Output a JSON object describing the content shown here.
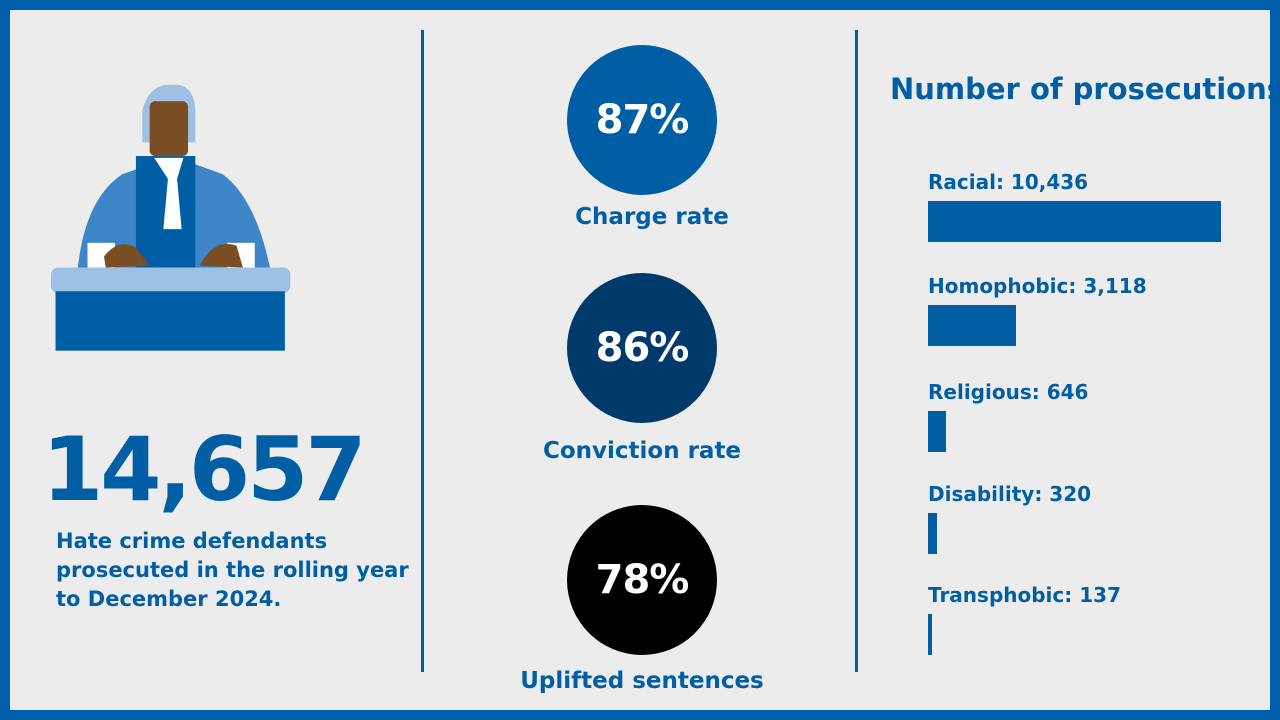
{
  "colors": {
    "border": "#005eaa",
    "background": "#ececec",
    "accent": "#005ea5",
    "charge": "#005ea5",
    "conviction": "#003a6b",
    "uplifted": "#000000"
  },
  "headline": {
    "value": "14,657",
    "description": "Hate crime defendants prosecuted in the rolling year to December 2024."
  },
  "rates": [
    {
      "value": "87%",
      "label": "Charge rate"
    },
    {
      "value": "86%",
      "label": "Conviction rate"
    },
    {
      "value": "78%",
      "label": "Uplifted sentences"
    }
  ],
  "chart_data": {
    "type": "bar",
    "orientation": "horizontal",
    "title": "Number of prosecutions",
    "categories": [
      "Racial",
      "Homophobic",
      "Religious",
      "Disability",
      "Transphobic"
    ],
    "values": [
      10436,
      3118,
      646,
      320,
      137
    ],
    "labels": [
      "Racial: 10,436",
      "Homophobic: 3,118",
      "Religious: 646",
      "Disability: 320",
      "Transphobic: 137"
    ],
    "grid": false
  }
}
